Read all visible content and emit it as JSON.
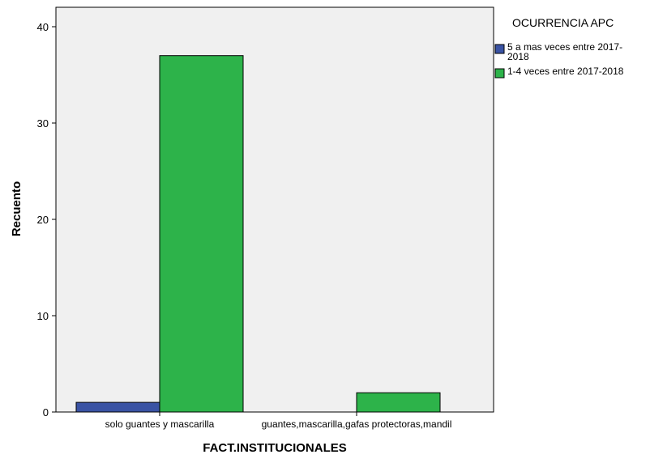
{
  "chart_data": {
    "type": "bar",
    "title": "",
    "xlabel": "FACT.INSTITUCIONALES",
    "ylabel": "Recuento",
    "categories": [
      "solo guantes y mascarilla",
      "guantes,mascarilla,gafas protectoras,mandil"
    ],
    "series": [
      {
        "name": "5 a mas veces entre 2017-2018",
        "legend_lines": [
          "5 a mas veces entre 2017-",
          "2018"
        ],
        "color": "#3a53a4",
        "values": [
          1,
          0
        ]
      },
      {
        "name": "1-4 veces entre 2017-2018",
        "legend_lines": [
          "1-4 veces entre 2017-2018"
        ],
        "color": "#2db34a",
        "values": [
          37,
          2
        ]
      }
    ],
    "ylim": [
      0,
      42
    ],
    "yticks": [
      0,
      10,
      20,
      30,
      40
    ],
    "grid": false,
    "legend": {
      "title": "OCURRENCIA APC",
      "placement": "right"
    },
    "plot_background": "#f0f0f0"
  }
}
